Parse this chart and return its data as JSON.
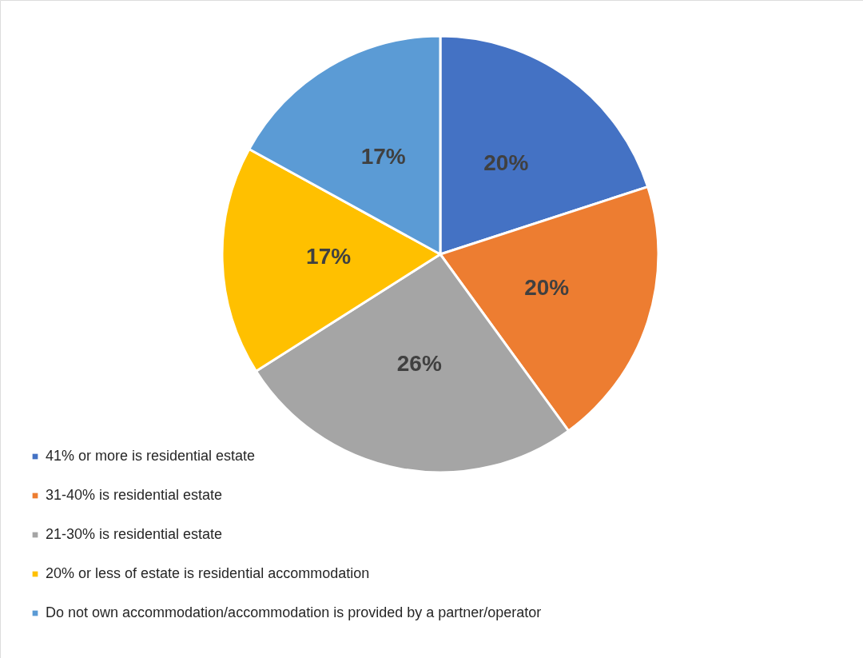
{
  "chart_data": {
    "type": "pie",
    "categories": [
      "41% or more is residential estate",
      "31-40% is residential estate",
      "21-30% is residential estate",
      "20% or less of estate is residential accommodation",
      "Do not own accommodation/accommodation is provided by a partner/operator"
    ],
    "values": [
      20,
      20,
      26,
      17,
      17
    ],
    "colors": [
      "#4472c4",
      "#ed7d31",
      "#a5a5a5",
      "#ffc000",
      "#5b9bd5"
    ],
    "value_labels": [
      "20%",
      "20%",
      "26%",
      "17%",
      "17%"
    ],
    "legend": "bottom left"
  }
}
